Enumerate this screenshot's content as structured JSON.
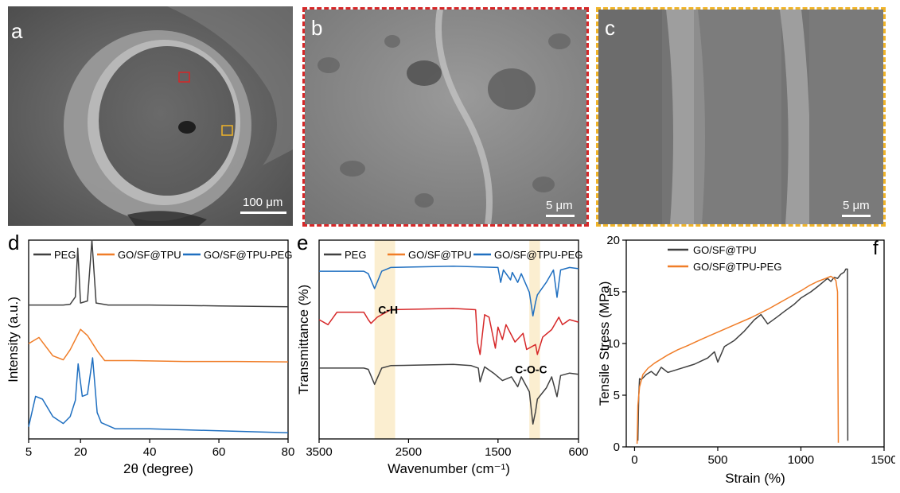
{
  "panels": {
    "a": {
      "letter": "a",
      "scale": "100 μm"
    },
    "b": {
      "letter": "b",
      "scale": "5 μm",
      "border_color": "#d62728"
    },
    "c": {
      "letter": "c",
      "scale": "5 μm",
      "border_color": "#f0b429"
    },
    "d": {
      "letter": "d"
    },
    "e": {
      "letter": "e"
    },
    "f": {
      "letter": "f"
    }
  },
  "colors": {
    "black": "#404040",
    "orange": "#f07d28",
    "blue": "#1f6fc0",
    "red": "#d62728",
    "highlight": "#fbeed0"
  },
  "chart_data": [
    {
      "panel": "d",
      "type": "line",
      "xlabel": "2θ (degree)",
      "ylabel": "Intensity (a.u.)",
      "xlim": [
        5,
        80
      ],
      "xticks": [
        5,
        20,
        40,
        60,
        80
      ],
      "legend": [
        "PEG",
        "GO/SF@TPU",
        "GO/SF@TPU-PEG"
      ],
      "legend_position": "top",
      "series": [
        {
          "name": "PEG",
          "x": [
            5,
            10,
            15,
            17,
            18.5,
            19.2,
            20,
            22,
            23.3,
            24.5,
            28,
            40,
            60,
            80
          ],
          "y": [
            1.0,
            1.0,
            1.0,
            1.02,
            1.2,
            2.4,
            1.05,
            1.1,
            2.6,
            1.05,
            1.0,
            1.0,
            0.98,
            0.96
          ]
        },
        {
          "name": "GO/SF@TPU",
          "x": [
            5,
            8,
            12,
            15,
            17,
            20,
            22,
            25,
            27,
            35,
            50,
            65,
            80
          ],
          "y": [
            1.0,
            1.15,
            0.7,
            0.6,
            0.85,
            1.35,
            1.2,
            0.8,
            0.58,
            0.58,
            0.56,
            0.56,
            0.55
          ]
        },
        {
          "name": "GO/SF@TPU-PEG",
          "x": [
            5,
            7,
            9,
            12,
            15,
            17,
            18.5,
            19.3,
            20.5,
            22,
            23.5,
            24.8,
            26,
            30,
            40,
            60,
            80
          ],
          "y": [
            0.2,
            0.95,
            0.88,
            0.45,
            0.28,
            0.45,
            0.85,
            1.75,
            0.95,
            1.0,
            1.9,
            0.55,
            0.3,
            0.15,
            0.15,
            0.1,
            0.05
          ]
        }
      ]
    },
    {
      "panel": "e",
      "type": "line",
      "xlabel": "Wavenumber (cm⁻¹)",
      "ylabel": "Transmittance (%)",
      "xlim": [
        3500,
        600
      ],
      "xticks": [
        3500,
        2500,
        1500,
        600
      ],
      "legend": [
        "PEG",
        "GO/SF@TPU",
        "GO/SF@TPU-PEG"
      ],
      "legend_position": "top",
      "highlights": [
        [
          2880,
          2650
        ],
        [
          1150,
          1030
        ]
      ],
      "annotations": [
        "C-H",
        "C-O-C"
      ],
      "series": [
        {
          "name": "PEG",
          "x": [
            3500,
            3000,
            2950,
            2880,
            2800,
            2700,
            2000,
            1800,
            1720,
            1700,
            1650,
            1550,
            1450,
            1350,
            1280,
            1240,
            1150,
            1110,
            1080,
            1060,
            960,
            900,
            840,
            800,
            700,
            600
          ],
          "y": [
            5.7,
            5.7,
            5.6,
            4.4,
            5.7,
            5.9,
            6.0,
            5.9,
            5.7,
            4.6,
            5.8,
            5.3,
            4.7,
            5.0,
            4.2,
            5.0,
            3.8,
            1.2,
            2.2,
            3.2,
            4.1,
            5.0,
            3.4,
            5.1,
            5.3,
            5.2
          ]
        },
        {
          "name": "GO/SF@TPU",
          "x": [
            3500,
            3400,
            3300,
            3000,
            2950,
            2920,
            2850,
            2700,
            2000,
            1750,
            1730,
            1700,
            1650,
            1600,
            1530,
            1500,
            1450,
            1410,
            1310,
            1220,
            1180,
            1080,
            1060,
            1000,
            900,
            820,
            780,
            700,
            600
          ],
          "y": [
            9.6,
            9.2,
            10.2,
            10.2,
            9.6,
            9.3,
            9.8,
            10.4,
            10.5,
            10.4,
            7.8,
            6.8,
            10.0,
            9.8,
            7.3,
            9.0,
            8.0,
            9.2,
            7.8,
            8.5,
            7.2,
            7.6,
            6.8,
            8.2,
            8.8,
            9.8,
            9.2,
            9.6,
            9.4
          ]
        },
        {
          "name": "GO/SF@TPU-PEG",
          "x": [
            3500,
            3000,
            2950,
            2880,
            2800,
            2700,
            2000,
            1500,
            1470,
            1440,
            1360,
            1340,
            1280,
            1240,
            1150,
            1110,
            1080,
            1060,
            960,
            880,
            840,
            800,
            700,
            600
          ],
          "y": [
            13.5,
            13.5,
            13.3,
            12.1,
            13.5,
            13.8,
            13.9,
            13.8,
            12.6,
            13.6,
            12.8,
            13.4,
            12.6,
            13.3,
            11.8,
            9.9,
            11.0,
            11.6,
            12.6,
            13.6,
            11.4,
            13.6,
            13.8,
            13.7
          ]
        }
      ]
    },
    {
      "panel": "f",
      "type": "line",
      "xlabel": "Strain (%)",
      "ylabel": "Tensile Stress (MPa)",
      "xlim": [
        -50,
        1500
      ],
      "ylim": [
        0,
        20
      ],
      "xticks": [
        0,
        500,
        1000,
        1500
      ],
      "yticks": [
        0,
        5,
        10,
        15,
        20
      ],
      "legend": [
        "GO/SF@TPU",
        "GO/SF@TPU-PEG"
      ],
      "legend_position": "top-left",
      "series": [
        {
          "name": "GO/SF@TPU",
          "x": [
            20,
            25,
            30,
            40,
            70,
            100,
            130,
            160,
            200,
            240,
            280,
            320,
            360,
            400,
            440,
            480,
            500,
            540,
            600,
            660,
            720,
            760,
            800,
            860,
            900,
            960,
            1000,
            1060,
            1100,
            1130,
            1160,
            1180,
            1200,
            1220,
            1240,
            1260,
            1270,
            1280,
            1282
          ],
          "y": [
            0.6,
            5.0,
            6.6,
            6.5,
            7.0,
            7.3,
            6.9,
            7.7,
            7.2,
            7.4,
            7.6,
            7.8,
            8.0,
            8.3,
            8.6,
            9.2,
            8.2,
            9.7,
            10.3,
            11.2,
            12.3,
            12.8,
            11.9,
            12.6,
            13.1,
            13.8,
            14.4,
            15.0,
            15.5,
            15.9,
            16.3,
            16.0,
            16.4,
            16.3,
            16.7,
            16.9,
            17.2,
            17.2,
            0.6
          ]
        },
        {
          "name": "GO/SF@TPU-PEG",
          "x": [
            15,
            20,
            30,
            50,
            80,
            120,
            160,
            200,
            260,
            320,
            400,
            500,
            600,
            700,
            800,
            900,
            1000,
            1050,
            1100,
            1150,
            1180,
            1200,
            1210,
            1220,
            1225
          ],
          "y": [
            0.3,
            4.0,
            5.8,
            7.0,
            7.6,
            8.1,
            8.5,
            8.9,
            9.4,
            9.8,
            10.4,
            11.1,
            11.8,
            12.5,
            13.3,
            14.2,
            15.1,
            15.6,
            16.0,
            16.3,
            16.5,
            16.3,
            16.1,
            15.0,
            0.4
          ]
        }
      ]
    }
  ]
}
